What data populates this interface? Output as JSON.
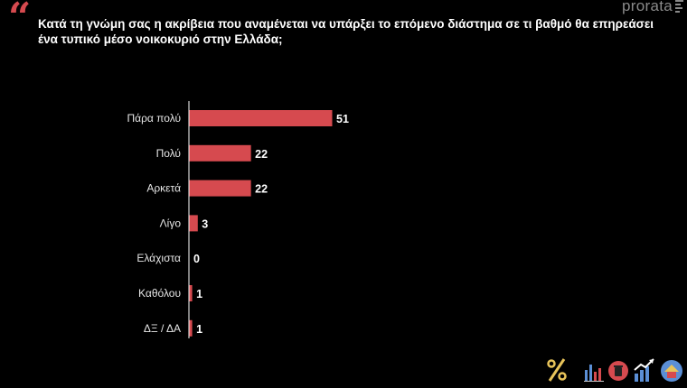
{
  "header": {
    "quote_mark": "“",
    "question": "Κατά τη γνώμη σας η ακρίβεια που αναμένεται να υπάρξει το επόμενο διάστημα σε τι βαθμό θα επηρεάσει ένα τυπικό μέσο νοικοκυριό στην Ελλάδα;",
    "brand": "prorata"
  },
  "footer_icons": [
    "percent-icon",
    "bar-chart-icon",
    "trash-can-icon",
    "rising-chart-icon",
    "house-icon"
  ],
  "colors": {
    "bar": "#d64a4f",
    "accent": "#d64a4f",
    "background": "#000000"
  },
  "chart_data": {
    "type": "bar",
    "orientation": "horizontal",
    "categories": [
      "Πάρα πολύ",
      "Πολύ",
      "Αρκετά",
      "Λίγο",
      "Ελάχιστα",
      "Καθόλου",
      "ΔΞ / ΔΑ"
    ],
    "values": [
      51,
      22,
      22,
      3,
      0,
      1,
      1
    ],
    "data_labels": [
      "51",
      "22",
      "22",
      "3",
      "0",
      "1",
      "1"
    ],
    "title": "",
    "xlabel": "",
    "ylabel": "",
    "xlim": [
      0,
      51
    ],
    "grid": false,
    "legend": "none"
  }
}
